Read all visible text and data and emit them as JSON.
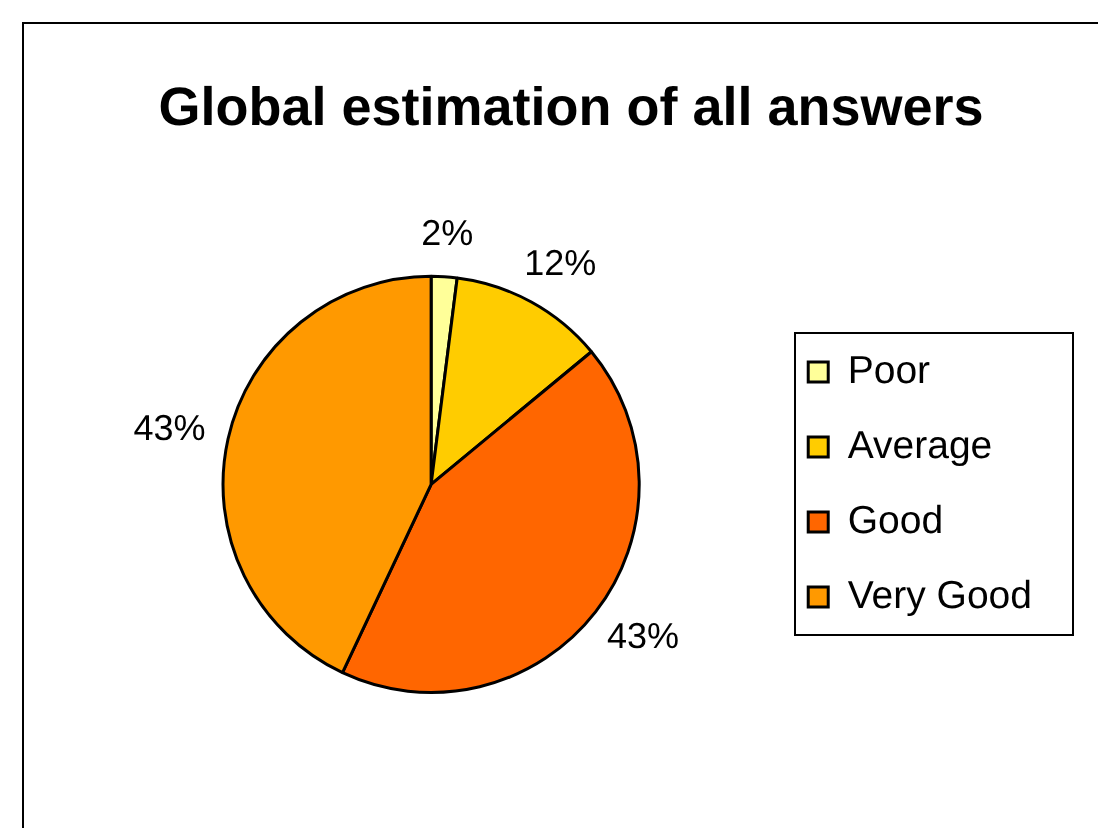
{
  "chart_data": {
    "type": "pie",
    "title": "Global estimation of all answers",
    "categories": [
      "Poor",
      "Average",
      "Good",
      "Very Good"
    ],
    "values": [
      2,
      12,
      43,
      43
    ],
    "colors": [
      "#ffff99",
      "#ffcc00",
      "#ff6600",
      "#ff9900"
    ],
    "value_labels": [
      "2%",
      "12%",
      "43%",
      "43%"
    ],
    "legend": "right"
  }
}
